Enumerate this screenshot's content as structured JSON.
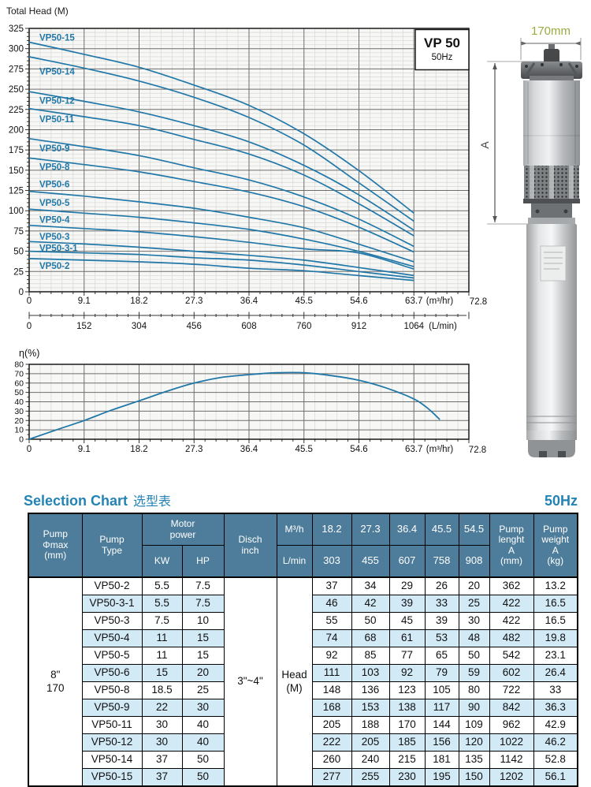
{
  "colors": {
    "accent_blue": "#2383b4",
    "curve_blue": "#2178a8",
    "table_header_bg": "#4e7d9b",
    "row_alt_bg": "#d2e9f6",
    "dim_olive": "#9aab3f",
    "grid_minor": "#d7d7d5",
    "grid_major": "#6e6e6e"
  },
  "pump_figure": {
    "width_label": "170mm",
    "height_label": "A"
  },
  "chart_data": [
    {
      "type": "line",
      "title": "VP 50",
      "subtitle": "50Hz",
      "ylabel": "Total Head (M)",
      "xlabel": "(m³/hr)",
      "x2label": "(L/min)",
      "x_end_label": "72.8",
      "xlim": [
        0,
        72.8
      ],
      "ylim": [
        0,
        325
      ],
      "grid": "on",
      "legend_position": "inline-labels",
      "y_ticks": [
        0,
        25,
        50,
        75,
        100,
        125,
        150,
        175,
        200,
        225,
        250,
        275,
        300,
        325
      ],
      "x_ticks": [
        0,
        9.1,
        18.2,
        27.3,
        36.4,
        45.5,
        54.6,
        63.7
      ],
      "x2_ticks": [
        0,
        152,
        304,
        456,
        608,
        760,
        912,
        1064
      ],
      "x": [
        0,
        9.1,
        18.2,
        27.3,
        36.4,
        45.5,
        54.5,
        63.7
      ],
      "series": [
        {
          "name": "VP50-15",
          "values": [
            308,
            293,
            277,
            255,
            230,
            195,
            150,
            97
          ],
          "label_head": 314
        },
        {
          "name": "VP50-14",
          "values": [
            290,
            276,
            260,
            240,
            215,
            181,
            135,
            87
          ],
          "label_head": 272
        },
        {
          "name": "VP50-12",
          "values": [
            247,
            235,
            222,
            205,
            185,
            156,
            120,
            76
          ],
          "label_head": 236
        },
        {
          "name": "VP50-11",
          "values": [
            226,
            216,
            205,
            188,
            170,
            144,
            109,
            69
          ],
          "label_head": 213
        },
        {
          "name": "VP50-9",
          "values": [
            189,
            179,
            168,
            153,
            138,
            117,
            90,
            56
          ],
          "label_head": 177
        },
        {
          "name": "VP50-8",
          "values": [
            165,
            157,
            148,
            136,
            123,
            105,
            80,
            49
          ],
          "label_head": 154
        },
        {
          "name": "VP50-6",
          "values": [
            124,
            118,
            111,
            103,
            92,
            79,
            59,
            37
          ],
          "label_head": 133
        },
        {
          "name": "VP50-5",
          "values": [
            102,
            97,
            92,
            85,
            77,
            65,
            50,
            31
          ],
          "label_head": 110
        },
        {
          "name": "VP50-4",
          "values": [
            82,
            78,
            74,
            68,
            61,
            53,
            48,
            28
          ],
          "label_head": 89
        },
        {
          "name": "VP50-3",
          "values": [
            62,
            59,
            55,
            50,
            45,
            39,
            30,
            20
          ],
          "label_head": 68
        },
        {
          "name": "VP50-3-1",
          "values": [
            50,
            48,
            46,
            42,
            39,
            33,
            25,
            17
          ],
          "label_head": 54
        },
        {
          "name": "VP50-2",
          "values": [
            41,
            39,
            37,
            34,
            29,
            26,
            20,
            14
          ],
          "label_head": 32
        }
      ]
    },
    {
      "type": "line",
      "title": "Efficiency curve",
      "ylabel": "η(%)",
      "xlabel": "(m³/hr)",
      "x_end_label": "72.8",
      "xlim": [
        0,
        72.8
      ],
      "ylim": [
        0,
        80
      ],
      "grid": "on",
      "y_ticks": [
        0,
        10,
        20,
        30,
        40,
        50,
        60,
        70,
        80
      ],
      "x_ticks": [
        0,
        9.1,
        18.2,
        27.3,
        36.4,
        45.5,
        54.6,
        63.7
      ],
      "x": [
        0,
        4.5,
        9.1,
        13.6,
        18.2,
        22.7,
        27.3,
        31.8,
        36.4,
        41,
        45.5,
        50,
        54.6,
        59,
        63.7,
        66,
        68
      ],
      "values": [
        0,
        10,
        20,
        31,
        41,
        51,
        60,
        66,
        69,
        71,
        71,
        68,
        63,
        55,
        43,
        33,
        21
      ]
    }
  ],
  "selection_table": {
    "title": "Selection Chart",
    "title_cn": "选型表",
    "freq": "50Hz",
    "header": {
      "pump_dmax": "Pump\nΦmax\n(mm)",
      "pump_type": "Pump\nType",
      "motor_power": "Motor\npower",
      "kw": "KW",
      "hp": "HP",
      "disch": "Disch\ninch",
      "m3h": "M³/h",
      "lmin": "L/min",
      "flow_m3h": [
        "18.2",
        "27.3",
        "36.4",
        "45.5",
        "54.5"
      ],
      "flow_lmin": [
        "303",
        "455",
        "607",
        "758",
        "908"
      ],
      "pump_length": "Pump\nlenght\nA\n(mm)",
      "pump_weight": "Pump\nweight\nA\n(kg)"
    },
    "merged": {
      "dmax": "8\"\n170",
      "disch": "3\"~4\"",
      "head_label": "Head\n(M)"
    },
    "rows": [
      {
        "type": "VP50-2",
        "kw": "5.5",
        "hp": "7.5",
        "heads": [
          "37",
          "34",
          "29",
          "26",
          "20"
        ],
        "length": "362",
        "weight": "13.2"
      },
      {
        "type": "VP50-3-1",
        "kw": "5.5",
        "hp": "7.5",
        "heads": [
          "46",
          "42",
          "39",
          "33",
          "25"
        ],
        "length": "422",
        "weight": "16.5"
      },
      {
        "type": "VP50-3",
        "kw": "7.5",
        "hp": "10",
        "heads": [
          "55",
          "50",
          "45",
          "39",
          "30"
        ],
        "length": "422",
        "weight": "16.5"
      },
      {
        "type": "VP50-4",
        "kw": "11",
        "hp": "15",
        "heads": [
          "74",
          "68",
          "61",
          "53",
          "48"
        ],
        "length": "482",
        "weight": "19.8"
      },
      {
        "type": "VP50-5",
        "kw": "11",
        "hp": "15",
        "heads": [
          "92",
          "85",
          "77",
          "65",
          "50"
        ],
        "length": "542",
        "weight": "23.1"
      },
      {
        "type": "VP50-6",
        "kw": "15",
        "hp": "20",
        "heads": [
          "111",
          "103",
          "92",
          "79",
          "59"
        ],
        "length": "602",
        "weight": "26.4"
      },
      {
        "type": "VP50-8",
        "kw": "18.5",
        "hp": "25",
        "heads": [
          "148",
          "136",
          "123",
          "105",
          "80"
        ],
        "length": "722",
        "weight": "33"
      },
      {
        "type": "VP50-9",
        "kw": "22",
        "hp": "30",
        "heads": [
          "168",
          "153",
          "138",
          "117",
          "90"
        ],
        "length": "842",
        "weight": "36.3"
      },
      {
        "type": "VP50-11",
        "kw": "30",
        "hp": "40",
        "heads": [
          "205",
          "188",
          "170",
          "144",
          "109"
        ],
        "length": "962",
        "weight": "42.9"
      },
      {
        "type": "VP50-12",
        "kw": "30",
        "hp": "40",
        "heads": [
          "222",
          "205",
          "185",
          "156",
          "120"
        ],
        "length": "1022",
        "weight": "46.2"
      },
      {
        "type": "VP50-14",
        "kw": "37",
        "hp": "50",
        "heads": [
          "260",
          "240",
          "215",
          "181",
          "135"
        ],
        "length": "1142",
        "weight": "52.8"
      },
      {
        "type": "VP50-15",
        "kw": "37",
        "hp": "50",
        "heads": [
          "277",
          "255",
          "230",
          "195",
          "150"
        ],
        "length": "1202",
        "weight": "56.1"
      }
    ]
  }
}
